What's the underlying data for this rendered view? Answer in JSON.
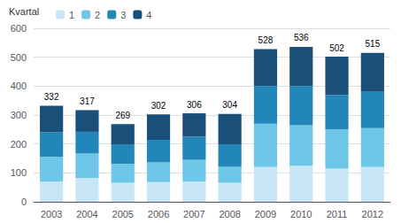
{
  "chart_data": {
    "type": "bar",
    "stacked": true,
    "categories": [
      "2003",
      "2004",
      "2005",
      "2006",
      "2007",
      "2008",
      "2009",
      "2010",
      "2011",
      "2012"
    ],
    "series": [
      {
        "name": "1",
        "color": "#c8e6f5",
        "values": [
          70,
          82,
          66,
          68,
          70,
          66,
          120,
          125,
          115,
          120
        ]
      },
      {
        "name": "2",
        "color": "#6ec6e8",
        "values": [
          85,
          85,
          65,
          68,
          75,
          55,
          150,
          140,
          135,
          135
        ]
      },
      {
        "name": "3",
        "color": "#2286b8",
        "values": [
          85,
          75,
          68,
          78,
          80,
          78,
          130,
          135,
          120,
          125
        ]
      },
      {
        "name": "4",
        "color": "#1a4f7a",
        "values": [
          92,
          75,
          70,
          88,
          81,
          105,
          128,
          136,
          132,
          135
        ]
      }
    ],
    "totals": [
      332,
      317,
      269,
      302,
      306,
      304,
      528,
      536,
      502,
      515
    ],
    "legend_title": "Kvartal",
    "legend": "upper left",
    "ylim": [
      0,
      600
    ],
    "yticks": [
      0,
      100,
      200,
      300,
      400,
      500,
      600
    ],
    "grid": true
  }
}
